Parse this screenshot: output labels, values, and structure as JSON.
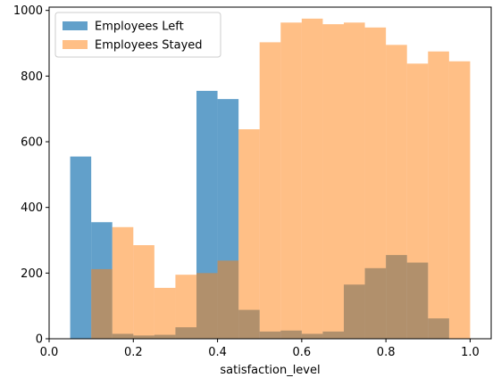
{
  "chart_data": {
    "type": "histogram",
    "title": "",
    "xlabel": "satisfaction_level",
    "ylabel": "",
    "xlim": [
      0.0,
      1.05
    ],
    "ylim": [
      0,
      1010
    ],
    "x_ticks": [
      0.0,
      0.2,
      0.4,
      0.6,
      0.8,
      1.0
    ],
    "x_tick_labels": [
      "0.0",
      "0.2",
      "0.4",
      "0.6",
      "0.8",
      "1.0"
    ],
    "y_ticks": [
      0,
      200,
      400,
      600,
      800,
      1000
    ],
    "y_tick_labels": [
      "0",
      "200",
      "400",
      "600",
      "800",
      "1000"
    ],
    "grid": false,
    "legend_position": "top-left",
    "series": [
      {
        "name": "Employees Left",
        "color": "#1f77b4",
        "opacity": 0.7,
        "bin_edges": [
          0.05,
          0.1,
          0.15,
          0.2,
          0.25,
          0.3,
          0.35,
          0.4,
          0.45,
          0.5,
          0.55,
          0.6,
          0.65,
          0.7,
          0.75,
          0.8,
          0.85,
          0.9,
          0.95
        ],
        "counts": [
          555,
          355,
          15,
          10,
          12,
          35,
          755,
          730,
          88,
          22,
          25,
          15,
          22,
          165,
          215,
          255,
          232,
          62
        ]
      },
      {
        "name": "Employees Stayed",
        "color": "#ff7f0e",
        "opacity": 0.5,
        "bin_edges": [
          0.1,
          0.15,
          0.2,
          0.25,
          0.3,
          0.35,
          0.4,
          0.45,
          0.5,
          0.55,
          0.6,
          0.65,
          0.7,
          0.75,
          0.8,
          0.85,
          0.9,
          0.95,
          1.0
        ],
        "counts": [
          212,
          340,
          285,
          155,
          195,
          200,
          238,
          638,
          903,
          963,
          975,
          958,
          963,
          948,
          895,
          838,
          875,
          845
        ]
      }
    ]
  }
}
